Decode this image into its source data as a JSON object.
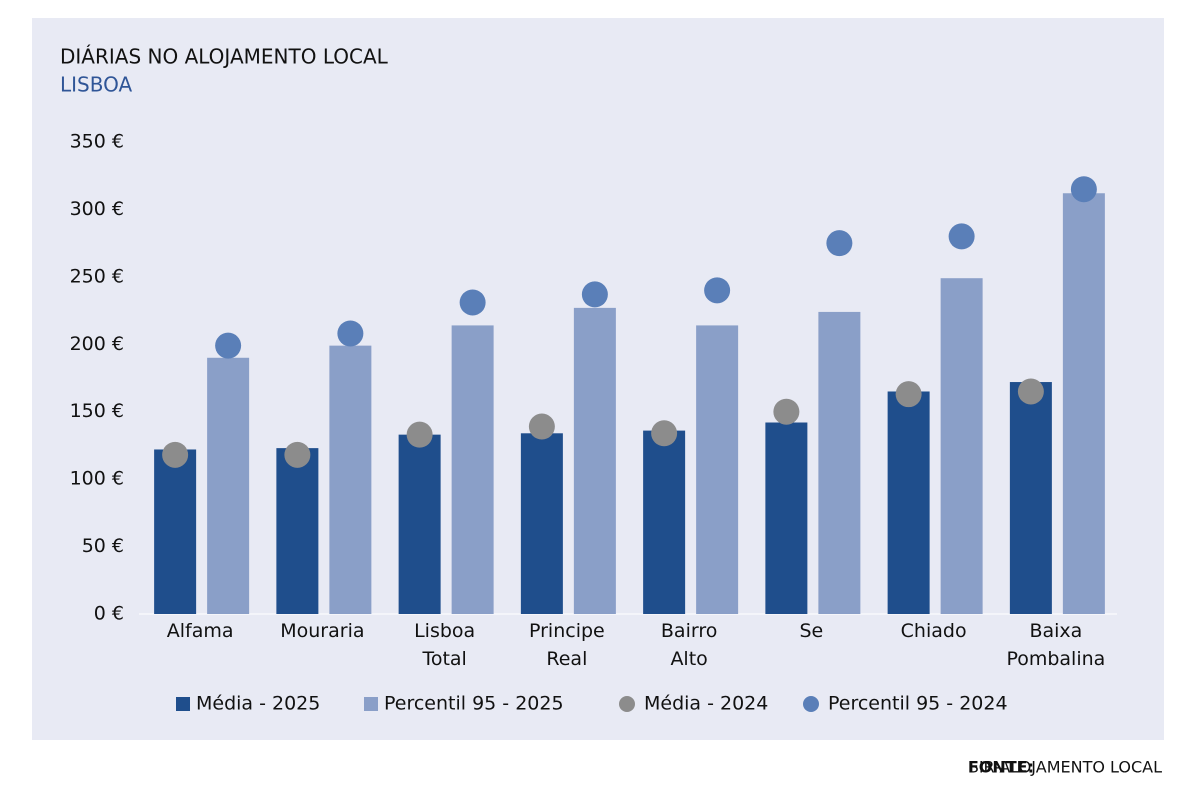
{
  "chart_data": {
    "type": "bar",
    "title": "DIÁRIAS NO ALOJAMENTO LOCAL",
    "subtitle": "LISBOA",
    "categories": [
      "Alfama",
      "Mouraria",
      "Lisboa\nTotal",
      "Principe\nReal",
      "Bairro\nAlto",
      "Se",
      "Chiado",
      "Baixa\nPombalina"
    ],
    "series": [
      {
        "name": "Média - 2025",
        "color": "#1f4e8c",
        "mark": "bar",
        "values": [
          122,
          123,
          133,
          134,
          136,
          142,
          165,
          172
        ]
      },
      {
        "name": "Percentil 95 - 2025",
        "color": "#8a9fc8",
        "mark": "bar",
        "values": [
          190,
          199,
          214,
          227,
          214,
          224,
          249,
          312
        ]
      },
      {
        "name": "Média - 2024",
        "color": "#8c8c8c",
        "mark": "dot",
        "values": [
          118,
          118,
          133,
          139,
          134,
          150,
          163,
          165
        ]
      },
      {
        "name": "Percentil 95 - 2024",
        "color": "#5a7fb8",
        "mark": "dot",
        "values": [
          199,
          208,
          231,
          237,
          240,
          275,
          280,
          315
        ]
      }
    ],
    "ylim": [
      0,
      350
    ],
    "yticks": [
      {
        "value": 0,
        "label": "0 €"
      },
      {
        "value": 50,
        "label": "50 €"
      },
      {
        "value": 100,
        "label": "100 €"
      },
      {
        "value": 150,
        "label": "150 €"
      },
      {
        "value": 200,
        "label": "200 €"
      },
      {
        "value": 250,
        "label": "250 €"
      },
      {
        "value": 300,
        "label": "300 €"
      },
      {
        "value": 350,
        "label": "350 €"
      }
    ],
    "grid": false,
    "legend": "bottom"
  },
  "source": {
    "label": "FONTE:",
    "text": "SIR-ALOJAMENTO LOCAL"
  }
}
